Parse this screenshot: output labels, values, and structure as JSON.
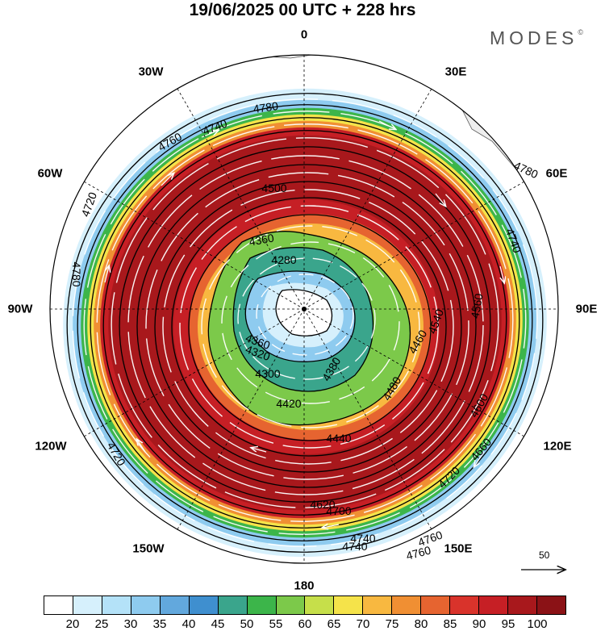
{
  "title": "19/06/2025  00 UTC  + 228 hrs",
  "brand": {
    "text": "MODES",
    "mark": "©"
  },
  "longitude_labels": {
    "n": "0",
    "ne30": "30E",
    "nw30": "30W",
    "e60": "60E",
    "w60": "60W",
    "e90": "90E",
    "w90": "90W",
    "e120": "120E",
    "w120": "120W",
    "e150": "150E",
    "w150": "150W",
    "s": "180"
  },
  "contour_labels": [
    "4780",
    "4760",
    "4740",
    "4780",
    "4760",
    "4740",
    "4720",
    "4720",
    "4780",
    "4720",
    "4700",
    "4500",
    "4360",
    "4280",
    "4360",
    "4320",
    "4300",
    "4380",
    "4420",
    "4440",
    "4480",
    "4460",
    "4540",
    "4560",
    "4600",
    "4620",
    "4660",
    "4740",
    "4760",
    "4740"
  ],
  "colors": {
    "ocean_bg": "#ffffff",
    "land": "#eeeeee",
    "core_red": "#a8181c",
    "contour": "#000000",
    "streamline": "#ffffff"
  },
  "legend": {
    "colors": [
      "#ffffff",
      "#d6f0fc",
      "#b4e2f8",
      "#8ecbef",
      "#62a8dd",
      "#3f8fcf",
      "#3aa58c",
      "#3cb54a",
      "#7cc94a",
      "#c6df4a",
      "#f5e34a",
      "#f8b840",
      "#f08f33",
      "#e66430",
      "#d9332b",
      "#c61f25",
      "#a8181c",
      "#8b1216"
    ],
    "labels": [
      "20",
      "25",
      "30",
      "35",
      "40",
      "45",
      "50",
      "55",
      "60",
      "65",
      "70",
      "75",
      "80",
      "85",
      "90",
      "95",
      "100"
    ]
  },
  "vector_reference": {
    "label": "50"
  }
}
